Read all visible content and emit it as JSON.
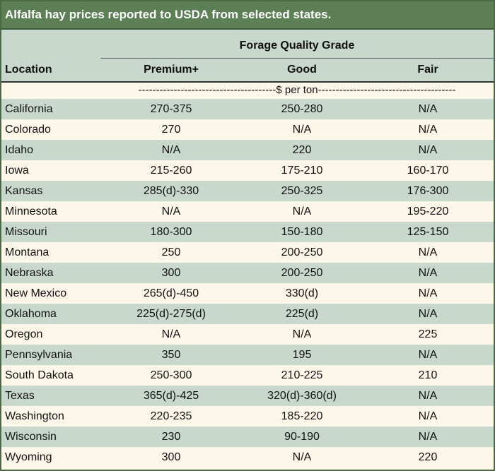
{
  "title": "Alfalfa hay prices reported to USDA from selected states.",
  "header": {
    "group": "Forage Quality Grade",
    "location": "Location",
    "premium": "Premium+",
    "good": "Good",
    "fair": "Fair"
  },
  "unit_line": "---------------------------------------$ per ton---------------------------------------",
  "rows": [
    {
      "location": "California",
      "premium": "270-375",
      "good": "250-280",
      "fair": "N/A"
    },
    {
      "location": "Colorado",
      "premium": "270",
      "good": "N/A",
      "fair": "N/A"
    },
    {
      "location": "Idaho",
      "premium": "N/A",
      "good": "220",
      "fair": "N/A"
    },
    {
      "location": "Iowa",
      "premium": "215-260",
      "good": "175-210",
      "fair": "160-170"
    },
    {
      "location": "Kansas",
      "premium": "285(d)-330",
      "good": "250-325",
      "fair": "176-300"
    },
    {
      "location": "Minnesota",
      "premium": "N/A",
      "good": "N/A",
      "fair": "195-220"
    },
    {
      "location": "Missouri",
      "premium": "180-300",
      "good": "150-180",
      "fair": "125-150"
    },
    {
      "location": "Montana",
      "premium": "250",
      "good": "200-250",
      "fair": "N/A"
    },
    {
      "location": "Nebraska",
      "premium": "300",
      "good": "200-250",
      "fair": "N/A"
    },
    {
      "location": "New Mexico",
      "premium": "265(d)-450",
      "good": "330(d)",
      "fair": "N/A"
    },
    {
      "location": "Oklahoma",
      "premium": "225(d)-275(d)",
      "good": "225(d)",
      "fair": "N/A"
    },
    {
      "location": "Oregon",
      "premium": "N/A",
      "good": "N/A",
      "fair": "225"
    },
    {
      "location": "Pennsylvania",
      "premium": "350",
      "good": "195",
      "fair": "N/A"
    },
    {
      "location": "South Dakota",
      "premium": "250-300",
      "good": "210-225",
      "fair": "210"
    },
    {
      "location": "Texas",
      "premium": "365(d)-425",
      "good": "320(d)-360(d)",
      "fair": "N/A"
    },
    {
      "location": "Washington",
      "premium": "220-235",
      "good": "185-220",
      "fair": "N/A"
    },
    {
      "location": "Wisconsin",
      "premium": "230",
      "good": "90-190",
      "fair": "N/A"
    },
    {
      "location": "Wyoming",
      "premium": "300",
      "good": "N/A",
      "fair": "220"
    }
  ]
}
